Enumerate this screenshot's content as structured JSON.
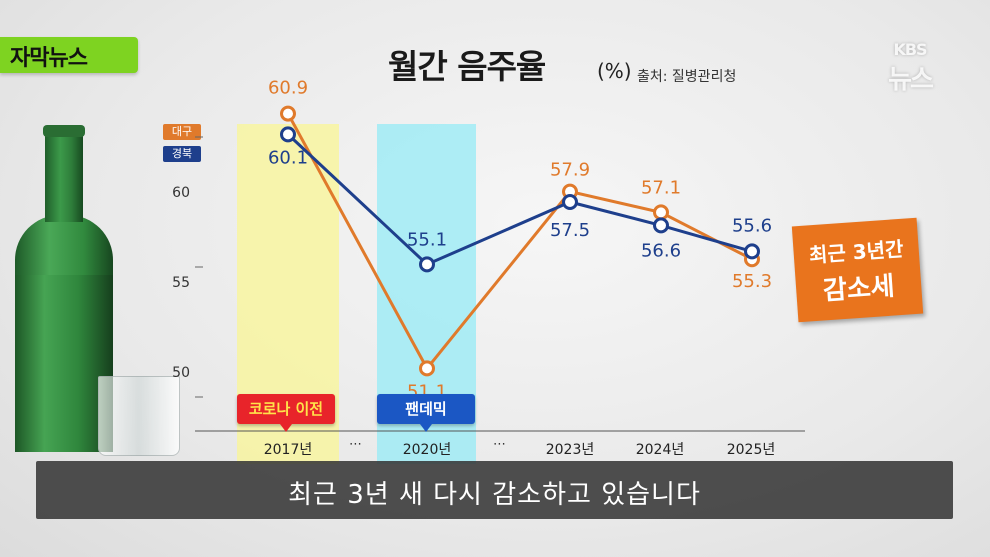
{
  "tag": {
    "label": "자막뉴스",
    "color": "#7ed321"
  },
  "logo": {
    "line1": "KBS",
    "line2": "뉴스"
  },
  "header": {
    "title": "월간 음주율",
    "unit": "(%)",
    "source": "출처: 질병관리청"
  },
  "badges": {
    "pre_covid": "코로나 이전",
    "pandemic": "팬데믹"
  },
  "callout": {
    "line1": "최근 3년간",
    "line2": "감소세",
    "color": "#e9741d"
  },
  "subtitle": "최근 3년 새 다시 감소하고 있습니다",
  "x_gaps": [
    "⋯",
    "⋯"
  ],
  "chart_data": {
    "type": "line",
    "title": "월간 음주율",
    "ylabel": "%",
    "categories": [
      "2017년",
      "2020년",
      "2023년",
      "2024년",
      "2025년"
    ],
    "y_ticks": [
      50,
      55,
      60
    ],
    "ylim": [
      48.5,
      62
    ],
    "grid": false,
    "legend": "top-left",
    "series": [
      {
        "name": "대구",
        "color": "#e07a2b",
        "values": [
          60.9,
          51.1,
          57.9,
          57.1,
          55.3
        ],
        "labels": [
          "60.9",
          "51.1",
          "57.9",
          "57.1",
          "55.3"
        ]
      },
      {
        "name": "경북",
        "color": "#1e3f8c",
        "values": [
          60.1,
          55.1,
          57.5,
          56.6,
          55.6
        ],
        "labels": [
          "60.1",
          "55.1",
          "57.5",
          "56.6",
          "55.6"
        ]
      }
    ]
  }
}
